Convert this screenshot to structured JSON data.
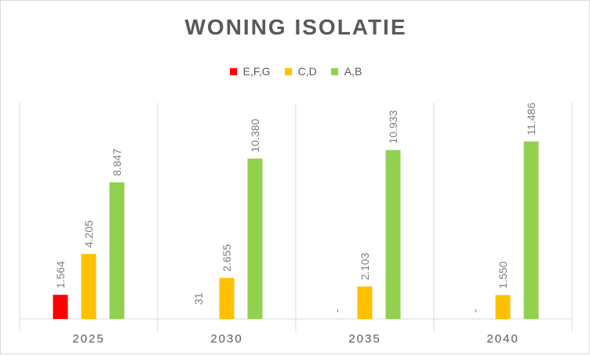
{
  "chart_data": {
    "type": "bar",
    "title": "WONING ISOLATIE",
    "xlabel": "",
    "ylabel": "",
    "categories": [
      "2025",
      "2030",
      "2035",
      "2040"
    ],
    "series": [
      {
        "name": "E,F,G",
        "color": "#ff0000",
        "values": [
          1564,
          0,
          0,
          0
        ],
        "labels": [
          "1.564",
          "",
          "-",
          "-"
        ]
      },
      {
        "name": "C,D",
        "color": "#ffc000",
        "values": [
          4205,
          2655,
          2103,
          1550
        ],
        "labels": [
          "4.205",
          "2.655",
          "2.103",
          "1.550"
        ]
      },
      {
        "name": "A,B",
        "color": "#92d050",
        "values": [
          8847,
          10380,
          10933,
          11486
        ],
        "labels": [
          "8.847",
          "10.380",
          "10.933",
          "11.486"
        ]
      }
    ],
    "extra_labels": [
      {
        "category": "2030",
        "text": "31"
      }
    ],
    "ylim": [
      0,
      14000
    ],
    "grid": false,
    "legend_position": "top"
  }
}
